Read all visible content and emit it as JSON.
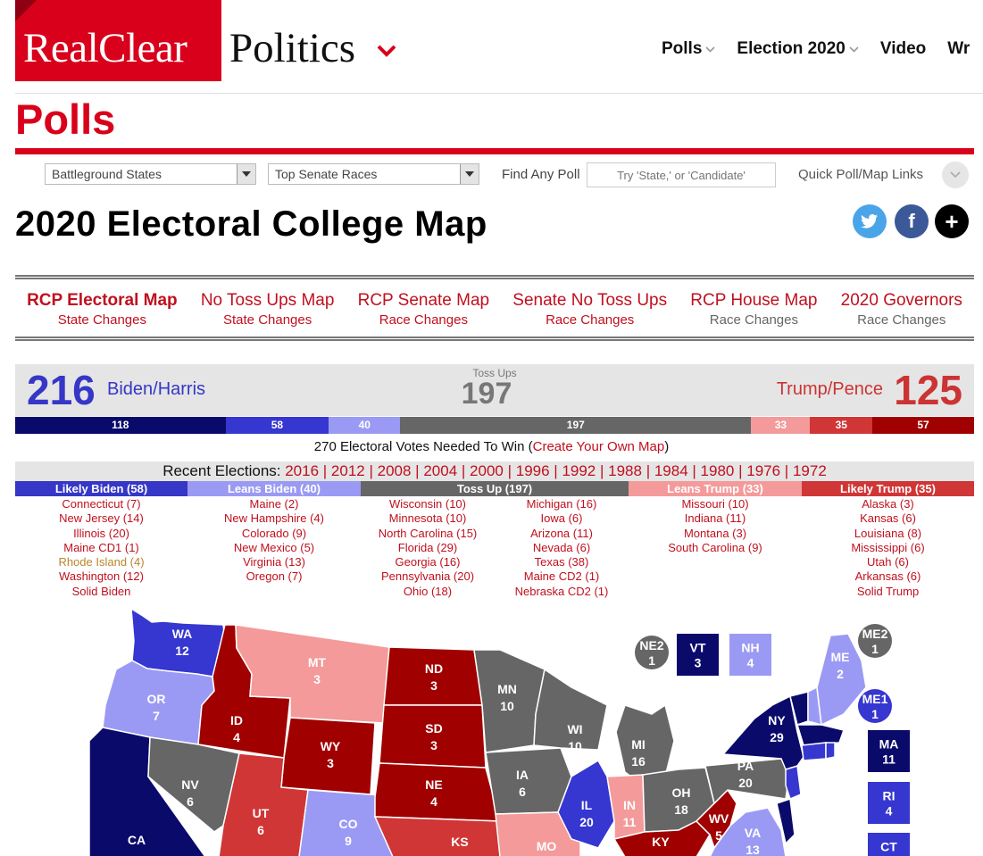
{
  "header": {
    "logo_left": "RealClear",
    "logo_right": "Politics",
    "nav": [
      {
        "label": "Polls",
        "chevron": true
      },
      {
        "label": "Election 2020",
        "chevron": true
      },
      {
        "label": "Video",
        "chevron": false
      },
      {
        "label": "Wr",
        "chevron": false
      }
    ]
  },
  "page_heading": "Polls",
  "search": {
    "select1": "Battleground States",
    "select2": "Top Senate Races",
    "find_label": "Find Any Poll",
    "find_placeholder": "Try 'State,' or 'Candidate'",
    "quick_label": "Quick Poll/Map Links"
  },
  "title": "2020 Electoral College Map",
  "social": {
    "twitter": "t",
    "facebook": "f",
    "more": "+"
  },
  "subnav": [
    {
      "title": "RCP Electoral Map",
      "sub": "State Changes"
    },
    {
      "title": "No Toss Ups Map",
      "sub": "State Changes"
    },
    {
      "title": "RCP Senate Map",
      "sub": "Race Changes"
    },
    {
      "title": "Senate No Toss Ups",
      "sub": "Race Changes"
    },
    {
      "title": "RCP House Map",
      "sub": "Race Changes"
    },
    {
      "title": "2020 Governors",
      "sub": "Race Changes"
    }
  ],
  "tally": {
    "biden_total": "216",
    "biden_label": "Biden/Harris",
    "toss_label": "Toss Ups",
    "toss_total": "197",
    "trump_label": "Trump/Pence",
    "trump_total": "125"
  },
  "bar": [
    {
      "value": "118",
      "color": "#0a0a6b",
      "ev": 118
    },
    {
      "value": "58",
      "color": "#3636d0",
      "ev": 58
    },
    {
      "value": "40",
      "color": "#9a9af4",
      "ev": 40
    },
    {
      "value": "197",
      "color": "#666666",
      "ev": 197
    },
    {
      "value": "33",
      "color": "#f49a9a",
      "ev": 33
    },
    {
      "value": "35",
      "color": "#d03636",
      "ev": 35
    },
    {
      "value": "57",
      "color": "#a00000",
      "ev": 57
    }
  ],
  "needed": {
    "text": "270 Electoral Votes Needed To Win (",
    "link": "Create Your Own Map",
    "close": ")"
  },
  "recent": {
    "label": "Recent Elections: ",
    "years": [
      "2016",
      "2012",
      "2008",
      "2004",
      "2000",
      "1996",
      "1992",
      "1988",
      "1984",
      "1980",
      "1976",
      "1972"
    ]
  },
  "categories": [
    {
      "label": "Likely Biden (58)",
      "color": "#3636c7"
    },
    {
      "label": "Leans Biden (40)",
      "color": "#9a9af4"
    },
    {
      "label": "Toss Up (197)",
      "color": "#666666"
    },
    {
      "label": "Leans Trump (33)",
      "color": "#f49a9a"
    },
    {
      "label": "Likely Trump (35)",
      "color": "#d03636"
    }
  ],
  "lists": {
    "likely_biden": [
      "Connecticut (7)",
      "New Jersey (14)",
      "Illinois (20)",
      "Maine CD1 (1)",
      "Rhode Island (4)",
      "Washington (12)",
      "Solid Biden"
    ],
    "leans_biden": [
      "Maine (2)",
      "New Hampshire (4)",
      "Colorado (9)",
      "New Mexico (5)",
      "Virginia (13)",
      "Oregon (7)"
    ],
    "toss_up_a": [
      "Wisconsin (10)",
      "Minnesota (10)",
      "North Carolina (15)",
      "Florida (29)",
      "Georgia (16)",
      "Pennsylvania (20)",
      "Ohio (18)"
    ],
    "toss_up_b": [
      "Michigan (16)",
      "Iowa (6)",
      "Arizona (11)",
      "Nevada (6)",
      "Texas (38)",
      "Maine CD2 (1)",
      "Nebraska CD2 (1)"
    ],
    "leans_trump": [
      "Missouri (10)",
      "Indiana (11)",
      "Montana (3)",
      "South Carolina (9)"
    ],
    "likely_trump": [
      "Alaska (3)",
      "Kansas (6)",
      "Louisiana (8)",
      "Mississippi (6)",
      "Utah (6)",
      "Arkansas (6)",
      "Solid Trump"
    ]
  },
  "map_colors": {
    "solid_biden": "#0a0a6b",
    "likely_biden": "#3636d0",
    "leans_biden": "#9a9af4",
    "toss": "#666666",
    "leans_trump": "#f49a9a",
    "likely_trump": "#d03636",
    "solid_trump": "#a00000"
  },
  "map_states": [
    {
      "abbr": "WA",
      "ev": "12"
    },
    {
      "abbr": "OR",
      "ev": "7"
    },
    {
      "abbr": "CA",
      "ev": ""
    },
    {
      "abbr": "ID",
      "ev": "4"
    },
    {
      "abbr": "NV",
      "ev": "6"
    },
    {
      "abbr": "MT",
      "ev": "3"
    },
    {
      "abbr": "WY",
      "ev": "3"
    },
    {
      "abbr": "UT",
      "ev": "6"
    },
    {
      "abbr": "CO",
      "ev": "9"
    },
    {
      "abbr": "ND",
      "ev": "3"
    },
    {
      "abbr": "SD",
      "ev": "3"
    },
    {
      "abbr": "NE",
      "ev": "4"
    },
    {
      "abbr": "KS",
      "ev": ""
    },
    {
      "abbr": "MN",
      "ev": "10"
    },
    {
      "abbr": "IA",
      "ev": "6"
    },
    {
      "abbr": "MO",
      "ev": ""
    },
    {
      "abbr": "WI",
      "ev": "10"
    },
    {
      "abbr": "IL",
      "ev": "20"
    },
    {
      "abbr": "MI",
      "ev": "16"
    },
    {
      "abbr": "IN",
      "ev": "11"
    },
    {
      "abbr": "OH",
      "ev": "18"
    },
    {
      "abbr": "KY",
      "ev": ""
    },
    {
      "abbr": "WV",
      "ev": "5"
    },
    {
      "abbr": "VA",
      "ev": "13"
    },
    {
      "abbr": "PA",
      "ev": "20"
    },
    {
      "abbr": "NY",
      "ev": "29"
    },
    {
      "abbr": "ME",
      "ev": "2"
    }
  ],
  "map_boxes": [
    {
      "abbr": "NE2",
      "ev": "1"
    },
    {
      "abbr": "VT",
      "ev": "3"
    },
    {
      "abbr": "NH",
      "ev": "4"
    },
    {
      "abbr": "ME2",
      "ev": "1"
    },
    {
      "abbr": "ME1",
      "ev": "1"
    },
    {
      "abbr": "MA",
      "ev": "11"
    },
    {
      "abbr": "RI",
      "ev": "4"
    },
    {
      "abbr": "CT",
      "ev": ""
    }
  ]
}
